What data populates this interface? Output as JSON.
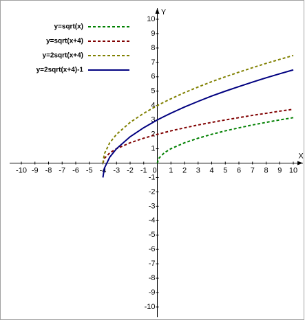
{
  "chart_data": {
    "type": "line",
    "x": [
      -4,
      -3.9,
      -3.5,
      -3,
      -2,
      -1,
      0,
      0.1,
      0.5,
      1,
      2,
      3,
      4,
      5,
      6,
      7,
      8,
      9,
      10
    ],
    "series": [
      {
        "name": "y=sqrt(x)",
        "color": "#008000",
        "dashed": true,
        "values": [
          null,
          null,
          null,
          null,
          null,
          null,
          0,
          0.32,
          0.71,
          1,
          1.41,
          1.73,
          2,
          2.24,
          2.45,
          2.65,
          2.83,
          3,
          3.16
        ]
      },
      {
        "name": "y=sqrt(x+4)",
        "color": "#800000",
        "dashed": true,
        "values": [
          0,
          0.32,
          0.71,
          1,
          1.41,
          1.73,
          2,
          2.02,
          2.12,
          2.24,
          2.45,
          2.65,
          2.83,
          3,
          3.16,
          3.32,
          3.46,
          3.61,
          3.74
        ]
      },
      {
        "name": "y=2sqrt(x+4)",
        "color": "#808000",
        "dashed": true,
        "values": [
          0,
          0.63,
          1.41,
          2,
          2.83,
          3.46,
          4,
          4.05,
          4.24,
          4.47,
          4.9,
          5.29,
          5.66,
          6,
          6.32,
          6.63,
          6.93,
          7.21,
          7.48
        ]
      },
      {
        "name": "y=2sqrt(x+4)-1",
        "color": "#000080",
        "dashed": false,
        "values": [
          -1,
          -0.37,
          0.41,
          1,
          1.83,
          2.46,
          3,
          3.05,
          3.24,
          3.47,
          3.9,
          4.29,
          4.66,
          5,
          5.32,
          5.63,
          5.93,
          6.21,
          6.48
        ]
      }
    ],
    "x_label": "X",
    "y_label": "Y",
    "xlim": [
      -10,
      10
    ],
    "ylim": [
      -10,
      10
    ],
    "xticks": [
      -10,
      -9,
      -8,
      -7,
      -6,
      -5,
      -4,
      -3,
      -2,
      -1,
      0,
      1,
      2,
      3,
      4,
      5,
      6,
      7,
      8,
      9,
      10
    ],
    "yticks": [
      -10,
      -9,
      -8,
      -7,
      -6,
      -5,
      -4,
      -3,
      -2,
      -1,
      1,
      2,
      3,
      4,
      5,
      6,
      7,
      8,
      9,
      10
    ],
    "legend": "upper-left"
  }
}
